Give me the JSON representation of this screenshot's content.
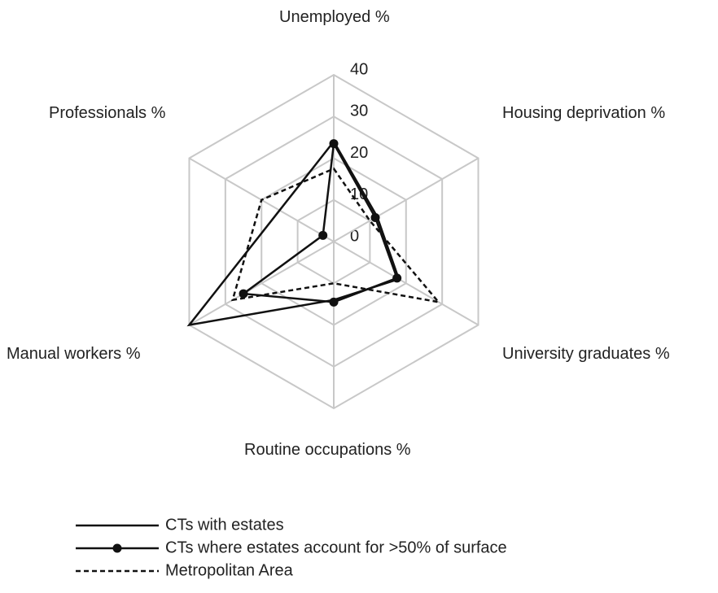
{
  "chart_data": {
    "type": "radar",
    "categories": [
      "Unemployed %",
      "Housing deprivation %",
      "University graduates %",
      "Routine occupations %",
      "Manual workers %",
      "Professionals %"
    ],
    "series": [
      {
        "name": "CTs with estates",
        "color": "#111111",
        "style": "solid",
        "marker": false,
        "values": [
          24,
          12,
          18,
          14,
          40,
          15
        ]
      },
      {
        "name": "CTs where estates account for >50% of surface",
        "color": "#111111",
        "style": "solid",
        "marker": true,
        "values": [
          23.5,
          11.5,
          17.5,
          14.5,
          25,
          3
        ]
      },
      {
        "name": "Metropolitan Area",
        "color": "#111111",
        "style": "dashed",
        "marker": false,
        "values": [
          17.5,
          10,
          29,
          10,
          28,
          20
        ]
      }
    ],
    "ylim": [
      0,
      40
    ],
    "yticks": [
      0,
      10,
      20,
      30,
      40
    ],
    "grid": true
  }
}
